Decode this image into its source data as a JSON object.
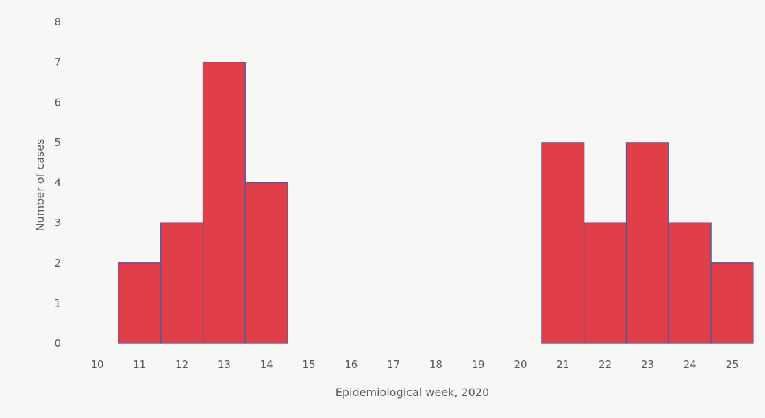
{
  "chart_data": {
    "type": "bar",
    "title": "",
    "xlabel": "Epidemiological week, 2020",
    "ylabel": "Number of cases",
    "categories": [
      "10",
      "11",
      "12",
      "13",
      "14",
      "15",
      "16",
      "17",
      "18",
      "19",
      "20",
      "21",
      "22",
      "23",
      "24",
      "25"
    ],
    "values": [
      0,
      2,
      3,
      7,
      4,
      0,
      0,
      0,
      0,
      0,
      0,
      5,
      3,
      5,
      3,
      2
    ],
    "ylim": [
      0,
      8
    ],
    "yticks": [
      "0",
      "1",
      "2",
      "3",
      "4",
      "5",
      "6",
      "7",
      "8"
    ],
    "grid": false,
    "legend": "none",
    "colors": {
      "bar_fill": "#e03e48",
      "bar_edge": "#4a5b9c",
      "text": "#595959"
    }
  }
}
